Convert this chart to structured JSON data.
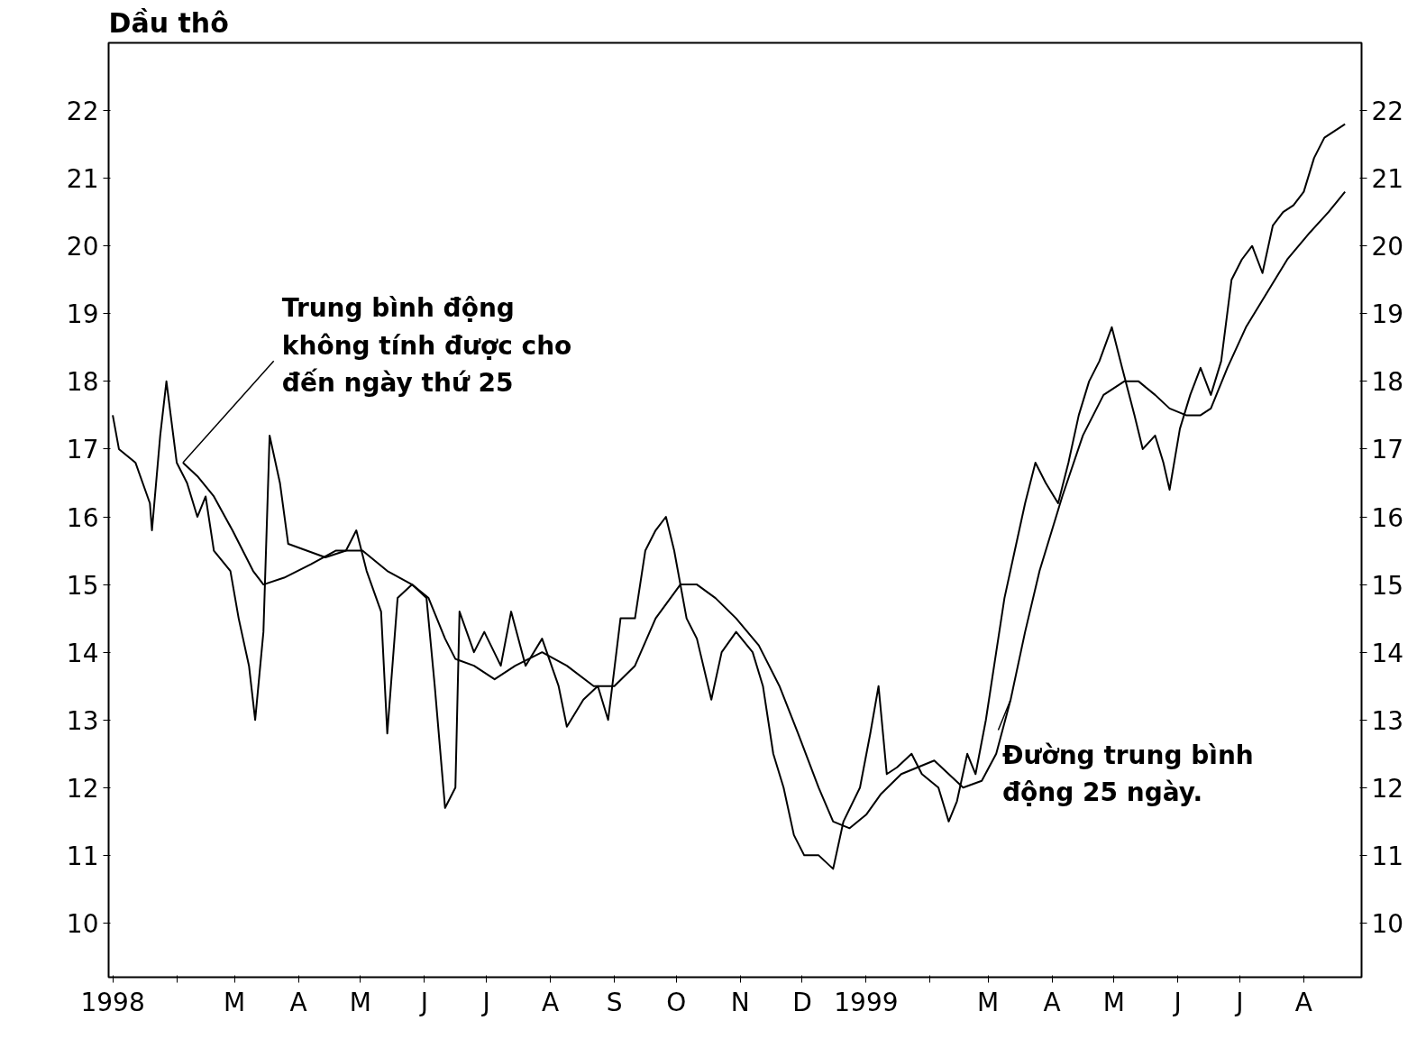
{
  "chart_data": {
    "type": "line",
    "title": "Dầu thô",
    "xlim": [
      "1997-12-30",
      "1999-08-29"
    ],
    "xticks": [
      {
        "value": "1998-01-01",
        "label": "1998"
      },
      {
        "value": "1998-02-01",
        "label": null
      },
      {
        "value": "1998-03-01",
        "label": "M"
      },
      {
        "value": "1998-04-01",
        "label": "A"
      },
      {
        "value": "1998-05-01",
        "label": "M"
      },
      {
        "value": "1998-06-01",
        "label": "J"
      },
      {
        "value": "1998-07-01",
        "label": "J"
      },
      {
        "value": "1998-08-01",
        "label": "A"
      },
      {
        "value": "1998-09-01",
        "label": "S"
      },
      {
        "value": "1998-10-01",
        "label": "O"
      },
      {
        "value": "1998-11-01",
        "label": "N"
      },
      {
        "value": "1998-12-01",
        "label": "D"
      },
      {
        "value": "1999-01-01",
        "label": "1999"
      },
      {
        "value": "1999-02-01",
        "label": null
      },
      {
        "value": "1999-03-01",
        "label": "M"
      },
      {
        "value": "1999-04-01",
        "label": "A"
      },
      {
        "value": "1999-05-01",
        "label": "M"
      },
      {
        "value": "1999-06-01",
        "label": "J"
      },
      {
        "value": "1999-07-01",
        "label": "J"
      },
      {
        "value": "1999-08-01",
        "label": "A"
      }
    ],
    "ylim": [
      9.2,
      23
    ],
    "yticks": [
      10,
      11,
      12,
      13,
      14,
      15,
      16,
      17,
      18,
      19,
      20,
      21,
      22
    ],
    "y2lim": [
      9.2,
      23
    ],
    "y2ticks": [
      10,
      11,
      12,
      13,
      14,
      15,
      16,
      17,
      18,
      19,
      20,
      21,
      22
    ],
    "grid": false,
    "marker": "none",
    "line_style": "solid",
    "series": [
      {
        "color": "#000000",
        "x": [
          "1998-01-01",
          "1998-01-04",
          "1998-01-12",
          "1998-01-19",
          "1998-01-20",
          "1998-01-24",
          "1998-01-27",
          "1998-02-01",
          "1998-02-06",
          "1998-02-11",
          "1998-02-15",
          "1998-02-19",
          "1998-02-27",
          "1998-03-03",
          "1998-03-08",
          "1998-03-11",
          "1998-03-15",
          "1998-03-18",
          "1998-03-23",
          "1998-03-27",
          "1998-04-05",
          "1998-04-14",
          "1998-04-24",
          "1998-04-29",
          "1998-05-04",
          "1998-05-11",
          "1998-05-14",
          "1998-05-19",
          "1998-05-26",
          "1998-06-02",
          "1998-06-06",
          "1998-06-11",
          "1998-06-16",
          "1998-06-18",
          "1998-06-25",
          "1998-06-30",
          "1998-07-08",
          "1998-07-13",
          "1998-07-20",
          "1998-07-28",
          "1998-08-05",
          "1998-08-09",
          "1998-08-17",
          "1998-08-24",
          "1998-08-29",
          "1998-09-04",
          "1998-09-11",
          "1998-09-16",
          "1998-09-21",
          "1998-09-26",
          "1998-09-30",
          "1998-10-06",
          "1998-10-11",
          "1998-10-18",
          "1998-10-23",
          "1998-10-30",
          "1998-11-07",
          "1998-11-12",
          "1998-11-17",
          "1998-11-22",
          "1998-11-27",
          "1998-12-02",
          "1998-12-09",
          "1998-12-16",
          "1998-12-21",
          "1998-12-29",
          "1999-01-03",
          "1999-01-07",
          "1999-01-11",
          "1999-01-16",
          "1999-01-23",
          "1999-01-28",
          "1999-02-05",
          "1999-02-10",
          "1999-02-14",
          "1999-02-19",
          "1999-02-23",
          "1999-02-28",
          "1999-03-05",
          "1999-03-09",
          "1999-03-14",
          "1999-03-19",
          "1999-03-24",
          "1999-03-29",
          "1999-04-04",
          "1999-04-09",
          "1999-04-14",
          "1999-04-19",
          "1999-04-24",
          "1999-04-30",
          "1999-05-05",
          "1999-05-11",
          "1999-05-15",
          "1999-05-21",
          "1999-05-25",
          "1999-05-28",
          "1999-06-02",
          "1999-06-07",
          "1999-06-12",
          "1999-06-17",
          "1999-06-22",
          "1999-06-27",
          "1999-07-02",
          "1999-07-07",
          "1999-07-12",
          "1999-07-17",
          "1999-07-22",
          "1999-07-27",
          "1999-08-01",
          "1999-08-06",
          "1999-08-11",
          "1999-08-16",
          "1999-08-21"
        ],
        "values": [
          17.5,
          17.0,
          16.8,
          16.2,
          15.8,
          17.2,
          18.0,
          16.8,
          16.5,
          16.0,
          16.3,
          15.5,
          15.2,
          14.5,
          13.8,
          13.0,
          14.3,
          17.2,
          16.5,
          15.6,
          15.5,
          15.4,
          15.5,
          15.8,
          15.2,
          14.6,
          12.8,
          14.8,
          15.0,
          14.8,
          13.5,
          11.7,
          12.0,
          14.6,
          14.0,
          14.3,
          13.8,
          14.6,
          13.8,
          14.2,
          13.5,
          12.9,
          13.3,
          13.5,
          13.0,
          14.5,
          14.5,
          15.5,
          15.8,
          16.0,
          15.5,
          14.5,
          14.2,
          13.3,
          14.0,
          14.3,
          14.0,
          13.5,
          12.5,
          12.0,
          11.3,
          11.0,
          11.0,
          10.8,
          11.5,
          12.0,
          12.8,
          13.5,
          12.2,
          12.3,
          12.5,
          12.2,
          12.0,
          11.5,
          11.8,
          12.5,
          12.2,
          13.0,
          14.0,
          14.8,
          15.5,
          16.2,
          16.8,
          16.5,
          16.2,
          16.8,
          17.5,
          18.0,
          18.3,
          18.8,
          18.2,
          17.5,
          17.0,
          17.2,
          16.8,
          16.4,
          17.3,
          17.8,
          18.2,
          17.8,
          18.3,
          19.5,
          19.8,
          20.0,
          19.6,
          20.3,
          20.5,
          20.6,
          20.8,
          21.3,
          21.6,
          21.7,
          21.8
        ]
      },
      {
        "color": "#000000",
        "x": [
          "1998-02-04",
          "1998-02-11",
          "1998-02-19",
          "1998-02-28",
          "1998-03-10",
          "1998-03-15",
          "1998-03-25",
          "1998-04-07",
          "1998-04-19",
          "1998-05-02",
          "1998-05-14",
          "1998-05-26",
          "1998-06-03",
          "1998-06-11",
          "1998-06-16",
          "1998-06-25",
          "1998-07-05",
          "1998-07-15",
          "1998-07-28",
          "1998-08-09",
          "1998-08-22",
          "1998-09-01",
          "1998-09-11",
          "1998-09-21",
          "1998-10-03",
          "1998-10-11",
          "1998-10-20",
          "1998-10-30",
          "1998-11-10",
          "1998-11-20",
          "1998-11-29",
          "1998-12-09",
          "1998-12-16",
          "1998-12-24",
          "1999-01-01",
          "1999-01-08",
          "1999-01-18",
          "1999-01-26",
          "1999-02-03",
          "1999-02-10",
          "1999-02-17",
          "1999-02-26",
          "1999-03-05",
          "1999-03-12",
          "1999-03-19",
          "1999-03-26",
          "1999-04-06",
          "1999-04-16",
          "1999-04-26",
          "1999-05-06",
          "1999-05-13",
          "1999-05-21",
          "1999-05-28",
          "1999-06-05",
          "1999-06-12",
          "1999-06-17",
          "1999-06-25",
          "1999-07-04",
          "1999-07-14",
          "1999-07-24",
          "1999-08-04",
          "1999-08-13",
          "1999-08-21"
        ],
        "values": [
          16.8,
          16.6,
          16.3,
          15.8,
          15.2,
          15.0,
          15.1,
          15.3,
          15.5,
          15.5,
          15.2,
          15.0,
          14.8,
          14.2,
          13.9,
          13.8,
          13.6,
          13.8,
          14.0,
          13.8,
          13.5,
          13.5,
          13.8,
          14.5,
          15.0,
          15.0,
          14.8,
          14.5,
          14.1,
          13.5,
          12.8,
          12.0,
          11.5,
          11.4,
          11.6,
          11.9,
          12.2,
          12.3,
          12.4,
          12.2,
          12.0,
          12.1,
          12.5,
          13.3,
          14.3,
          15.2,
          16.3,
          17.2,
          17.8,
          18.0,
          18.0,
          17.8,
          17.6,
          17.5,
          17.5,
          17.6,
          18.2,
          18.8,
          19.3,
          19.8,
          20.2,
          20.5,
          20.8
        ]
      }
    ],
    "annotations": [
      {
        "text": "Trung bình động\nkhông tính được cho\nđến ngày thứ 25",
        "x": "1998-02-04",
        "y": 16.8
      },
      {
        "text": "Đường trung bình\nđộng 25 ngày.",
        "x": "1999-03-12",
        "y": 13.3
      }
    ]
  }
}
